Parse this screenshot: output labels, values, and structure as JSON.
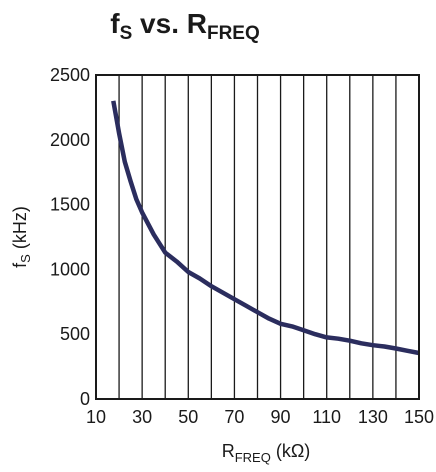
{
  "chart_data": {
    "type": "line",
    "title": {
      "main": "f",
      "sub1": "S",
      "mid": " vs. R",
      "sub2": "FREQ"
    },
    "xlabel": {
      "main": "R",
      "sub": "FREQ",
      "unit": " (kΩ)"
    },
    "ylabel": {
      "main": "f",
      "sub": "S",
      "unit": " (kHz)"
    },
    "xlim": [
      10,
      150
    ],
    "ylim": [
      0,
      2500
    ],
    "x_tick_labels": [
      "10",
      "30",
      "50",
      "70",
      "90",
      "110",
      "130",
      "150"
    ],
    "y_tick_labels": [
      "0",
      "500",
      "1000",
      "1500",
      "2000",
      "2500"
    ],
    "grid": {
      "vertical": true,
      "horizontal": false,
      "vertical_step": 10
    },
    "series": [
      {
        "color": "#2b2d5e",
        "x": [
          17.5,
          20,
          22.5,
          25,
          27.5,
          30,
          35,
          40,
          45,
          50,
          55,
          60,
          65,
          70,
          75,
          80,
          85,
          90,
          95,
          100,
          105,
          110,
          115,
          120,
          125,
          130,
          135,
          140,
          145,
          150
        ],
        "y": [
          2300,
          2050,
          1830,
          1680,
          1540,
          1440,
          1270,
          1130,
          1060,
          980,
          930,
          870,
          820,
          770,
          720,
          670,
          620,
          580,
          560,
          530,
          500,
          475,
          465,
          450,
          430,
          415,
          405,
          390,
          372,
          355
        ]
      }
    ]
  }
}
